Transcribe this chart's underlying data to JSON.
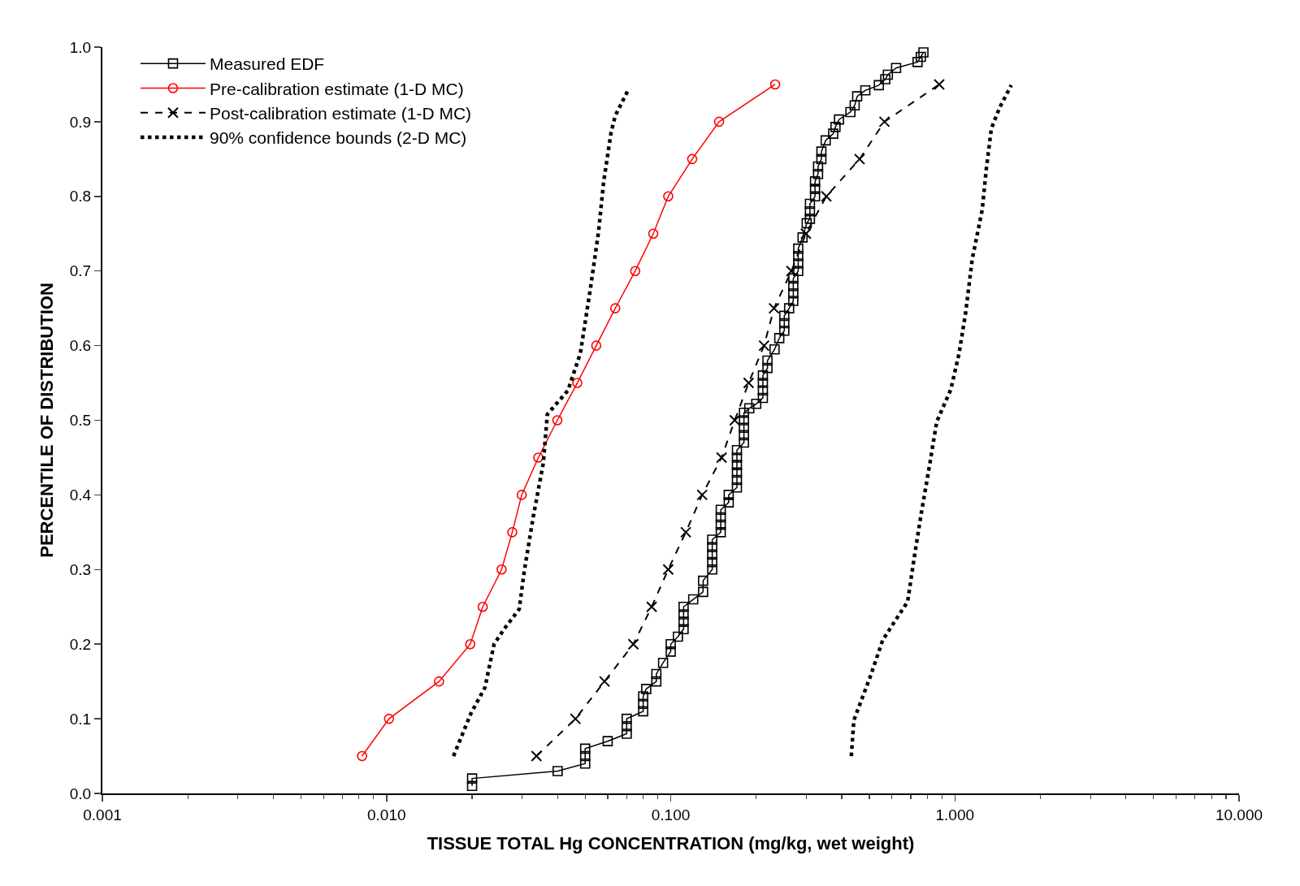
{
  "chart_data": {
    "type": "line",
    "xlabel": "TISSUE TOTAL Hg CONCENTRATION (mg/kg, wet weight)",
    "ylabel": "PERCENTILE OF DISTRIBUTION",
    "log": "x",
    "xlim": [
      0.001,
      10
    ],
    "ylim": [
      0,
      1
    ],
    "xticks": [
      {
        "value": 0.001,
        "label": "0.001"
      },
      {
        "value": 0.01,
        "label": "0.010"
      },
      {
        "value": 0.1,
        "label": "0.100"
      },
      {
        "value": 1,
        "label": "1.000"
      },
      {
        "value": 10,
        "label": "10.000"
      }
    ],
    "yticks": [
      {
        "value": 0,
        "label": "0.0"
      },
      0.1,
      0.2,
      0.3,
      0.4,
      0.5,
      0.6,
      0.7,
      0.8,
      0.9,
      {
        "value": 1,
        "label": "1.0"
      }
    ],
    "grid": false,
    "legend": "top left",
    "series": [
      {
        "name": "Measured EDF",
        "color": "#000000",
        "marker": "square",
        "line_style": "solid",
        "x": [
          0.02,
          0.02,
          0.04,
          0.05,
          0.05,
          0.05,
          0.06,
          0.07,
          0.07,
          0.07,
          0.08,
          0.08,
          0.08,
          0.082,
          0.089,
          0.089,
          0.094,
          0.1,
          0.1,
          0.106,
          0.111,
          0.111,
          0.111,
          0.111,
          0.12,
          0.13,
          0.13,
          0.14,
          0.14,
          0.14,
          0.14,
          0.14,
          0.15,
          0.15,
          0.15,
          0.15,
          0.16,
          0.16,
          0.171,
          0.171,
          0.171,
          0.171,
          0.171,
          0.171,
          0.181,
          0.181,
          0.181,
          0.181,
          0.181,
          0.189,
          0.2,
          0.211,
          0.211,
          0.211,
          0.211,
          0.219,
          0.219,
          0.232,
          0.241,
          0.251,
          0.251,
          0.251,
          0.261,
          0.27,
          0.27,
          0.27,
          0.27,
          0.281,
          0.281,
          0.281,
          0.281,
          0.291,
          0.301,
          0.309,
          0.309,
          0.309,
          0.322,
          0.322,
          0.322,
          0.33,
          0.33,
          0.339,
          0.339,
          0.351,
          0.373,
          0.38,
          0.391,
          0.429,
          0.444,
          0.453,
          0.484,
          0.54,
          0.569,
          0.581,
          0.621,
          0.739,
          0.759,
          0.775
        ],
        "values": [
          0.01,
          0.02,
          0.03,
          0.04,
          0.05,
          0.06,
          0.07,
          0.08,
          0.09,
          0.1,
          0.11,
          0.12,
          0.13,
          0.14,
          0.15,
          0.16,
          0.175,
          0.19,
          0.2,
          0.21,
          0.22,
          0.23,
          0.24,
          0.25,
          0.26,
          0.27,
          0.285,
          0.3,
          0.31,
          0.32,
          0.33,
          0.34,
          0.35,
          0.36,
          0.37,
          0.38,
          0.39,
          0.4,
          0.41,
          0.42,
          0.43,
          0.44,
          0.45,
          0.46,
          0.47,
          0.48,
          0.49,
          0.5,
          0.51,
          0.516,
          0.522,
          0.53,
          0.54,
          0.55,
          0.56,
          0.57,
          0.58,
          0.595,
          0.61,
          0.62,
          0.63,
          0.64,
          0.65,
          0.66,
          0.67,
          0.68,
          0.69,
          0.7,
          0.71,
          0.72,
          0.73,
          0.745,
          0.764,
          0.77,
          0.78,
          0.79,
          0.8,
          0.81,
          0.82,
          0.83,
          0.84,
          0.85,
          0.86,
          0.875,
          0.884,
          0.893,
          0.903,
          0.913,
          0.922,
          0.934,
          0.942,
          0.949,
          0.957,
          0.963,
          0.972,
          0.98,
          0.987,
          0.993
        ]
      },
      {
        "name": "Pre-calibration estimate (1-D MC)",
        "color": "#ff0000",
        "marker": "circle",
        "line_style": "solid",
        "x": [
          0.0082,
          0.0102,
          0.0153,
          0.0197,
          0.0218,
          0.0254,
          0.0277,
          0.0299,
          0.0342,
          0.0399,
          0.0469,
          0.0547,
          0.0638,
          0.075,
          0.0868,
          0.098,
          0.119,
          0.148,
          0.233
        ],
        "values": [
          0.05,
          0.1,
          0.15,
          0.2,
          0.25,
          0.3,
          0.35,
          0.4,
          0.45,
          0.5,
          0.55,
          0.6,
          0.65,
          0.7,
          0.75,
          0.8,
          0.85,
          0.9,
          0.95
        ]
      },
      {
        "name": "Post-calibration estimate (1-D MC)",
        "color": "#000000",
        "marker": "cross",
        "line_style": "dashed",
        "x": [
          0.0337,
          0.0462,
          0.0585,
          0.0739,
          0.0857,
          0.098,
          0.113,
          0.129,
          0.151,
          0.168,
          0.188,
          0.213,
          0.231,
          0.266,
          0.299,
          0.353,
          0.462,
          0.565,
          0.881
        ],
        "values": [
          0.05,
          0.1,
          0.15,
          0.2,
          0.25,
          0.3,
          0.35,
          0.4,
          0.45,
          0.5,
          0.55,
          0.6,
          0.65,
          0.7,
          0.75,
          0.8,
          0.85,
          0.9,
          0.95
        ]
      },
      {
        "name": "90% confidence bounds (2-D MC)",
        "color": "#000000",
        "marker": "none",
        "line_style": "dotted",
        "x": [
          0.0172,
          0.0198,
          0.0222,
          0.0239,
          0.0259,
          0.0293,
          0.0305,
          0.0328,
          0.0356,
          0.0368,
          0.0435,
          0.0481,
          0.0521,
          0.0557,
          0.0581,
          0.0617,
          0.0638,
          0.0705
        ],
        "values": [
          0.05,
          0.107,
          0.142,
          0.2,
          0.22,
          0.247,
          0.297,
          0.37,
          0.442,
          0.508,
          0.54,
          0.59,
          0.675,
          0.752,
          0.82,
          0.886,
          0.908,
          0.941
        ]
      },
      {
        "color": "#000000",
        "marker": "none",
        "line_style": "dotted",
        "x": [
          0.432,
          0.441,
          0.501,
          0.558,
          0.682,
          0.72,
          0.759,
          0.818,
          0.863,
          0.967,
          1.034,
          1.091,
          1.151,
          1.248,
          1.29,
          1.344,
          1.437,
          1.579
        ],
        "values": [
          0.05,
          0.098,
          0.154,
          0.206,
          0.257,
          0.317,
          0.372,
          0.444,
          0.498,
          0.541,
          0.589,
          0.644,
          0.716,
          0.782,
          0.837,
          0.891,
          0.919,
          0.949
        ]
      }
    ]
  }
}
